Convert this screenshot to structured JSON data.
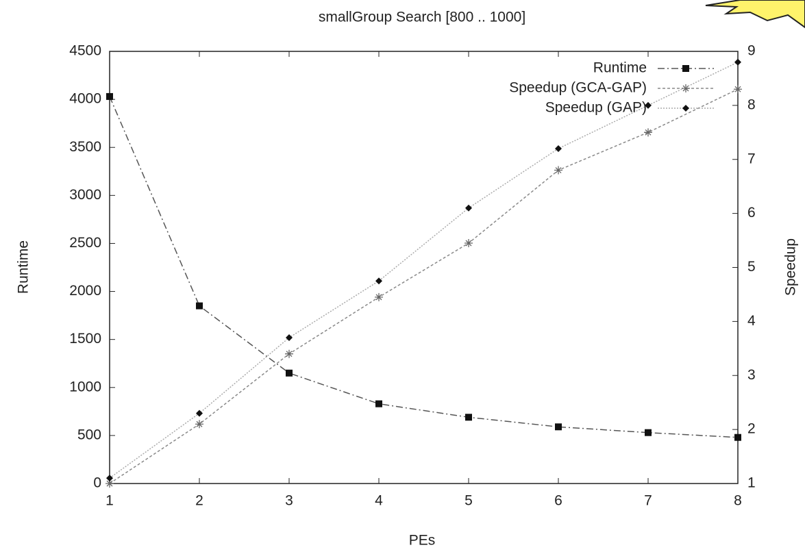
{
  "chart_data": {
    "type": "line",
    "title": "smallGroup Search [800 .. 1000]",
    "x_label": "PEs",
    "y_label": "Runtime",
    "y2_label": "Speedup",
    "x": [
      1,
      2,
      3,
      4,
      5,
      6,
      7,
      8
    ],
    "xlim": [
      1,
      8
    ],
    "xticks": [
      1,
      2,
      3,
      4,
      5,
      6,
      7,
      8
    ],
    "ylim": [
      0,
      4500
    ],
    "yticks": [
      0,
      500,
      1000,
      1500,
      2000,
      2500,
      3000,
      3500,
      4000,
      4500
    ],
    "y2lim": [
      1,
      9
    ],
    "y2ticks": [
      1,
      2,
      3,
      4,
      5,
      6,
      7,
      8,
      9
    ],
    "legend": "top-right",
    "series": [
      {
        "name": "Runtime",
        "color": "#555555",
        "dash": "10 4 2 4",
        "marker": "square",
        "values": [
          4030,
          1850,
          1150,
          830,
          690,
          590,
          530,
          480
        ]
      },
      {
        "name": "Speedup (GCA-GAP)",
        "color": "#888888",
        "dash": "4 3",
        "marker": "star",
        "axis": "y2",
        "values": [
          1.0,
          2.1,
          3.4,
          4.45,
          5.45,
          6.8,
          7.5,
          8.3
        ]
      },
      {
        "name": "Speedup (GAP)",
        "color": "#aaaaaa",
        "dash": "2 2",
        "marker": "diamond",
        "axis": "y2",
        "values": [
          1.1,
          2.3,
          3.7,
          4.75,
          6.1,
          7.2,
          8.0,
          8.8
        ]
      }
    ]
  }
}
